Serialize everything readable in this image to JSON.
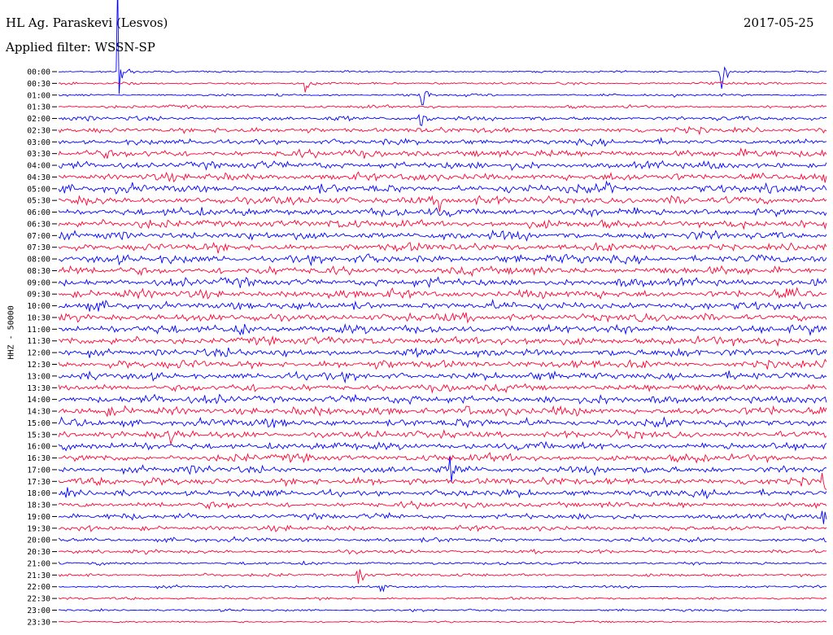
{
  "header": {
    "station": "HL Ag. Paraskevi (Lesvos)",
    "filter": "Applied filter: WSSN-SP",
    "date": "2017-05-25"
  },
  "channel_label": "HHZ - 50000",
  "chart_data": {
    "type": "helicorder",
    "title": "HL Ag. Paraskevi (Lesvos)",
    "subtitle": "Applied filter: WSSN-SP",
    "date": "2017-05-25",
    "ylabel": "HHZ - 50000",
    "grid": false,
    "trace_interval_minutes": 30,
    "row_labels": [
      "00:00",
      "00:30",
      "01:00",
      "01:30",
      "02:00",
      "02:30",
      "03:00",
      "03:30",
      "04:00",
      "04:30",
      "05:00",
      "05:30",
      "06:00",
      "06:30",
      "07:00",
      "07:30",
      "08:00",
      "08:30",
      "09:00",
      "09:30",
      "10:00",
      "10:30",
      "11:00",
      "11:30",
      "12:00",
      "12:30",
      "13:00",
      "13:30",
      "14:00",
      "14:30",
      "15:00",
      "15:30",
      "16:00",
      "16:30",
      "17:00",
      "17:30",
      "18:00",
      "18:30",
      "19:00",
      "19:30",
      "20:00",
      "20:30",
      "21:00",
      "21:30",
      "22:00",
      "22:30",
      "23:00",
      "23:30"
    ],
    "series_colors": [
      "#0000ff",
      "#ff0033"
    ],
    "row_noise_level": [
      0.15,
      0.2,
      0.2,
      0.25,
      0.35,
      0.45,
      0.45,
      0.6,
      0.6,
      0.6,
      0.65,
      0.65,
      0.65,
      0.65,
      0.65,
      0.65,
      0.65,
      0.65,
      0.65,
      0.65,
      0.65,
      0.65,
      0.65,
      0.65,
      0.65,
      0.65,
      0.6,
      0.6,
      0.65,
      0.65,
      0.65,
      0.6,
      0.6,
      0.6,
      0.6,
      0.6,
      0.55,
      0.5,
      0.45,
      0.4,
      0.35,
      0.3,
      0.25,
      0.25,
      0.2,
      0.2,
      0.18,
      0.15
    ],
    "events": [
      {
        "row": 0,
        "time_fraction": 0.077,
        "amplitude": 14
      },
      {
        "row": 0,
        "time_fraction": 0.862,
        "amplitude": 5
      },
      {
        "row": 1,
        "time_fraction": 0.322,
        "amplitude": 1.8
      },
      {
        "row": 2,
        "time_fraction": 0.471,
        "amplitude": 5
      },
      {
        "row": 4,
        "time_fraction": 0.471,
        "amplitude": 3
      },
      {
        "row": 10,
        "time_fraction": 0.714,
        "amplitude": 2.5
      },
      {
        "row": 11,
        "time_fraction": 0.497,
        "amplitude": 2
      },
      {
        "row": 22,
        "time_fraction": 0.237,
        "amplitude": 3
      },
      {
        "row": 29,
        "time_fraction": 0.527,
        "amplitude": 2.5
      },
      {
        "row": 31,
        "time_fraction": 0.142,
        "amplitude": 3
      },
      {
        "row": 34,
        "time_fraction": 0.511,
        "amplitude": 2
      },
      {
        "row": 35,
        "time_fraction": 0.996,
        "amplitude": 2.5
      },
      {
        "row": 38,
        "time_fraction": 0.996,
        "amplitude": 2.5
      },
      {
        "row": 43,
        "time_fraction": 0.39,
        "amplitude": 2.5
      },
      {
        "row": 44,
        "time_fraction": 0.421,
        "amplitude": 1.5
      }
    ]
  }
}
